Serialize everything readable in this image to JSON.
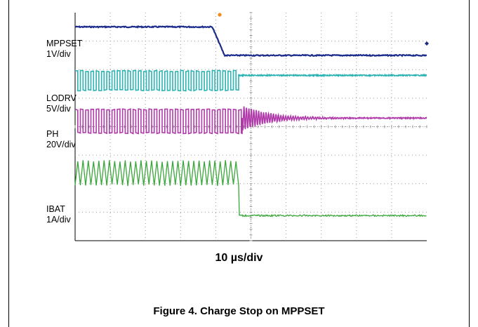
{
  "chart_data": {
    "type": "line",
    "title": "",
    "x_divisions": 10,
    "y_divisions": 8,
    "timebase": "10 µs/div",
    "channels": [
      {
        "name": "MPPSET",
        "scale": "1V/div",
        "color": "#1a2b8c",
        "kind": "step-down",
        "high_div": 0.5,
        "low_div": 1.5,
        "transition_start_div": 3.9,
        "transition_end_div": 4.25
      },
      {
        "name": "LODRV",
        "scale": "5V/div",
        "color": "#2bb3b3",
        "kind": "square-stop",
        "high_div": 2.05,
        "low_div": 2.72,
        "period_div": 0.15,
        "stop_div": 4.65,
        "after_div": 2.2
      },
      {
        "name": "PH",
        "scale": "20V/div",
        "color": "#b03aaa",
        "kind": "square-ring",
        "high_div": 3.4,
        "low_div": 4.22,
        "period_div": 0.15,
        "stop_div": 4.75,
        "settle_div": 3.7
      },
      {
        "name": "IBAT",
        "scale": "1A/div",
        "color": "#3aa63a",
        "kind": "triangle-stop",
        "high_div": 5.2,
        "low_div": 6.05,
        "period_div": 0.15,
        "stop_div": 4.65,
        "after_div": 7.12
      }
    ]
  },
  "caption": "Figure 4. Charge Stop on MPPSET",
  "top_fragment": "..."
}
